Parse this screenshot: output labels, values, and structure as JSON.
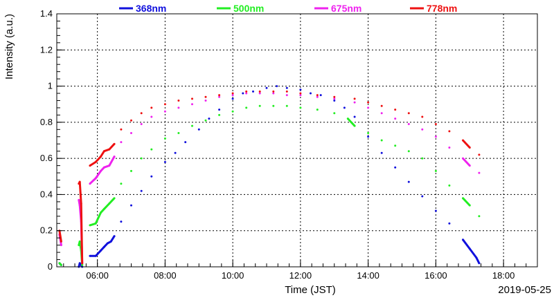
{
  "chart_data": {
    "type": "line",
    "date_label": "2019-05-25",
    "xlabel": "Time (JST)",
    "ylabel": "Intensity (a.u.)",
    "xlim_hours": [
      4.8,
      19.0
    ],
    "ylim": [
      0,
      1.4
    ],
    "x_ticks": [
      {
        "value": 6,
        "label": "06:00"
      },
      {
        "value": 8,
        "label": "08:00"
      },
      {
        "value": 10,
        "label": "10:00"
      },
      {
        "value": 12,
        "label": "12:00"
      },
      {
        "value": 14,
        "label": "14:00"
      },
      {
        "value": 16,
        "label": "16:00"
      },
      {
        "value": 18,
        "label": "18:00"
      }
    ],
    "y_ticks": [
      {
        "value": 0,
        "label": "0"
      },
      {
        "value": 0.2,
        "label": "0.2"
      },
      {
        "value": 0.4,
        "label": "0.4"
      },
      {
        "value": 0.6,
        "label": "0.6"
      },
      {
        "value": 0.8,
        "label": "0.8"
      },
      {
        "value": 1.0,
        "label": "1"
      },
      {
        "value": 1.2,
        "label": "1.2"
      },
      {
        "value": 1.4,
        "label": "1.4"
      }
    ],
    "grid": true,
    "legend_position": "top",
    "series": [
      {
        "name": "368nm",
        "color": "#1010dd",
        "points": [
          [
            4.88,
            0.02
          ],
          [
            4.93,
            0.01
          ],
          [
            5.45,
            0.0
          ],
          [
            5.48,
            0.02
          ],
          [
            5.52,
            0.01
          ],
          [
            5.55,
            0.0
          ],
          [
            5.78,
            0.06
          ],
          [
            5.95,
            0.06
          ],
          [
            6.1,
            0.09
          ],
          [
            6.2,
            0.11
          ],
          [
            6.3,
            0.13
          ],
          [
            6.4,
            0.14
          ],
          [
            6.5,
            0.17
          ],
          [
            6.7,
            0.25
          ],
          [
            7.0,
            0.34
          ],
          [
            7.3,
            0.42
          ],
          [
            7.6,
            0.5
          ],
          [
            8.0,
            0.58
          ],
          [
            8.3,
            0.63
          ],
          [
            8.6,
            0.69
          ],
          [
            9.0,
            0.76
          ],
          [
            9.3,
            0.82
          ],
          [
            9.6,
            0.87
          ],
          [
            10.0,
            0.93
          ],
          [
            10.3,
            0.96
          ],
          [
            10.6,
            0.97
          ],
          [
            11.0,
            0.99
          ],
          [
            11.3,
            1.0
          ],
          [
            11.6,
            0.99
          ],
          [
            12.0,
            0.98
          ],
          [
            12.3,
            0.96
          ],
          [
            12.6,
            0.95
          ],
          [
            13.0,
            0.92
          ],
          [
            13.3,
            0.88
          ],
          [
            13.6,
            0.83
          ],
          [
            14.0,
            0.72
          ],
          [
            14.4,
            0.63
          ],
          [
            14.8,
            0.55
          ],
          [
            15.2,
            0.47
          ],
          [
            15.6,
            0.39
          ],
          [
            16.0,
            0.31
          ],
          [
            16.4,
            0.24
          ],
          [
            16.8,
            0.15
          ],
          [
            17.0,
            0.1
          ],
          [
            17.2,
            0.05
          ],
          [
            17.28,
            0.02
          ]
        ]
      },
      {
        "name": "500nm",
        "color": "#22ee22",
        "points": [
          [
            4.88,
            0.02
          ],
          [
            4.93,
            0.01
          ],
          [
            5.45,
            0.12
          ],
          [
            5.48,
            0.14
          ],
          [
            5.52,
            0.09
          ],
          [
            5.55,
            0.01
          ],
          [
            5.78,
            0.23
          ],
          [
            5.95,
            0.24
          ],
          [
            6.1,
            0.3
          ],
          [
            6.2,
            0.32
          ],
          [
            6.35,
            0.35
          ],
          [
            6.5,
            0.38
          ],
          [
            6.7,
            0.46
          ],
          [
            7.0,
            0.53
          ],
          [
            7.3,
            0.6
          ],
          [
            7.6,
            0.65
          ],
          [
            8.0,
            0.71
          ],
          [
            8.4,
            0.74
          ],
          [
            8.8,
            0.78
          ],
          [
            9.2,
            0.81
          ],
          [
            9.6,
            0.84
          ],
          [
            10.0,
            0.86
          ],
          [
            10.4,
            0.88
          ],
          [
            10.8,
            0.89
          ],
          [
            11.2,
            0.89
          ],
          [
            11.6,
            0.89
          ],
          [
            12.0,
            0.88
          ],
          [
            12.5,
            0.87
          ],
          [
            13.0,
            0.85
          ],
          [
            13.4,
            0.82
          ],
          [
            13.6,
            0.78
          ],
          [
            14.0,
            0.74
          ],
          [
            14.4,
            0.7
          ],
          [
            14.8,
            0.67
          ],
          [
            15.2,
            0.64
          ],
          [
            15.6,
            0.6
          ],
          [
            16.0,
            0.53
          ],
          [
            16.4,
            0.45
          ],
          [
            16.8,
            0.38
          ],
          [
            17.0,
            0.34
          ],
          [
            17.28,
            0.28
          ]
        ]
      },
      {
        "name": "675nm",
        "color": "#ee22ee",
        "points": [
          [
            4.88,
            0.18
          ],
          [
            4.93,
            0.12
          ],
          [
            5.45,
            0.37
          ],
          [
            5.48,
            0.34
          ],
          [
            5.52,
            0.25
          ],
          [
            5.55,
            0.02
          ],
          [
            5.78,
            0.46
          ],
          [
            5.95,
            0.49
          ],
          [
            6.1,
            0.53
          ],
          [
            6.2,
            0.55
          ],
          [
            6.35,
            0.56
          ],
          [
            6.5,
            0.61
          ],
          [
            6.7,
            0.69
          ],
          [
            7.0,
            0.74
          ],
          [
            7.3,
            0.79
          ],
          [
            7.6,
            0.83
          ],
          [
            8.0,
            0.86
          ],
          [
            8.4,
            0.88
          ],
          [
            8.8,
            0.9
          ],
          [
            9.2,
            0.92
          ],
          [
            9.6,
            0.94
          ],
          [
            10.0,
            0.95
          ],
          [
            10.4,
            0.96
          ],
          [
            10.8,
            0.96
          ],
          [
            11.2,
            0.96
          ],
          [
            11.6,
            0.95
          ],
          [
            12.0,
            0.95
          ],
          [
            12.5,
            0.94
          ],
          [
            13.0,
            0.93
          ],
          [
            13.6,
            0.91
          ],
          [
            14.0,
            0.88
          ],
          [
            14.4,
            0.85
          ],
          [
            14.8,
            0.82
          ],
          [
            15.2,
            0.79
          ],
          [
            15.6,
            0.76
          ],
          [
            16.0,
            0.72
          ],
          [
            16.4,
            0.66
          ],
          [
            16.8,
            0.6
          ],
          [
            17.0,
            0.56
          ],
          [
            17.28,
            0.52
          ]
        ]
      },
      {
        "name": "778nm",
        "color": "#ee1111",
        "points": [
          [
            4.88,
            0.2
          ],
          [
            4.93,
            0.14
          ],
          [
            5.45,
            0.46
          ],
          [
            5.48,
            0.47
          ],
          [
            5.52,
            0.35
          ],
          [
            5.55,
            0.02
          ],
          [
            5.78,
            0.56
          ],
          [
            5.95,
            0.58
          ],
          [
            6.1,
            0.61
          ],
          [
            6.2,
            0.64
          ],
          [
            6.35,
            0.65
          ],
          [
            6.5,
            0.68
          ],
          [
            6.7,
            0.76
          ],
          [
            7.0,
            0.81
          ],
          [
            7.3,
            0.85
          ],
          [
            7.6,
            0.88
          ],
          [
            8.0,
            0.9
          ],
          [
            8.4,
            0.92
          ],
          [
            8.8,
            0.93
          ],
          [
            9.2,
            0.94
          ],
          [
            9.6,
            0.95
          ],
          [
            10.0,
            0.96
          ],
          [
            10.4,
            0.97
          ],
          [
            10.8,
            0.97
          ],
          [
            11.2,
            0.97
          ],
          [
            11.6,
            0.97
          ],
          [
            12.0,
            0.96
          ],
          [
            12.5,
            0.95
          ],
          [
            13.0,
            0.94
          ],
          [
            13.6,
            0.93
          ],
          [
            14.0,
            0.91
          ],
          [
            14.4,
            0.89
          ],
          [
            14.8,
            0.87
          ],
          [
            15.2,
            0.85
          ],
          [
            15.6,
            0.83
          ],
          [
            16.0,
            0.79
          ],
          [
            16.4,
            0.75
          ],
          [
            16.8,
            0.7
          ],
          [
            17.0,
            0.66
          ],
          [
            17.28,
            0.62
          ]
        ]
      }
    ]
  }
}
